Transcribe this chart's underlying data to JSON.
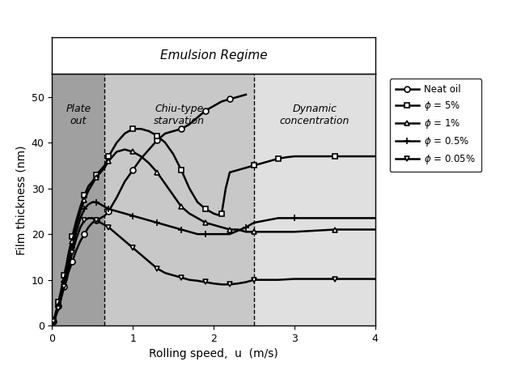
{
  "title": "Emulsion Regime",
  "xlabel": "Rolling speed,  u  (m/s)",
  "ylabel": "Film thickness (nm)",
  "xlim": [
    0,
    4
  ],
  "ylim": [
    0,
    55
  ],
  "region1_x": 0.65,
  "region2_x": 2.5,
  "region1_label": "Plate\nout",
  "region2_label": "Chiu-type\nstarvation",
  "region3_label": "Dynamic\nconcentration",
  "bg_color1": "#a0a0a0",
  "bg_color2": "#c8c8c8",
  "bg_color3": "#e0e0e0",
  "neat_oil": {
    "x": [
      0.02,
      0.04,
      0.06,
      0.08,
      0.1,
      0.12,
      0.15,
      0.18,
      0.2,
      0.25,
      0.3,
      0.35,
      0.4,
      0.45,
      0.5,
      0.55,
      0.6,
      0.65,
      0.7,
      0.8,
      0.9,
      1.0,
      1.1,
      1.2,
      1.3,
      1.4,
      1.5,
      1.6,
      1.7,
      1.8,
      1.9,
      2.0,
      2.1,
      2.2,
      2.3,
      2.4
    ],
    "y": [
      1.0,
      2.0,
      3.2,
      4.3,
      5.5,
      7.0,
      8.5,
      10.0,
      11.5,
      14.0,
      16.5,
      18.5,
      20.0,
      21.5,
      22.5,
      23.0,
      23.5,
      24.0,
      25.0,
      28.0,
      31.5,
      34.0,
      36.5,
      38.5,
      40.5,
      42.0,
      42.5,
      43.0,
      44.0,
      45.5,
      47.0,
      48.0,
      49.0,
      49.5,
      50.0,
      50.5
    ],
    "marker": "o",
    "label": "Neat oil",
    "lw": 1.8,
    "markevery": 3
  },
  "phi5": {
    "x": [
      0.02,
      0.04,
      0.06,
      0.08,
      0.1,
      0.12,
      0.15,
      0.18,
      0.2,
      0.25,
      0.3,
      0.35,
      0.4,
      0.45,
      0.5,
      0.55,
      0.6,
      0.65,
      0.7,
      0.8,
      0.9,
      1.0,
      1.1,
      1.2,
      1.3,
      1.4,
      1.5,
      1.6,
      1.7,
      1.8,
      1.9,
      2.0,
      2.05,
      2.1,
      2.15,
      2.2,
      2.5,
      2.6,
      2.7,
      2.8,
      2.9,
      3.0,
      3.5,
      4.0
    ],
    "y": [
      1.2,
      2.5,
      3.8,
      5.2,
      6.8,
      8.5,
      11.0,
      13.5,
      15.5,
      19.5,
      23.0,
      26.0,
      28.5,
      30.5,
      31.5,
      33.0,
      34.0,
      35.0,
      37.0,
      40.0,
      42.0,
      43.0,
      43.0,
      42.5,
      41.5,
      40.0,
      37.5,
      34.0,
      30.0,
      27.0,
      25.5,
      24.5,
      24.2,
      24.5,
      30.0,
      33.5,
      35.0,
      35.5,
      36.0,
      36.5,
      36.8,
      37.0,
      37.0,
      37.0
    ],
    "marker": "s",
    "label": "$\\phi$ = 5%",
    "lw": 1.8,
    "markevery": 3
  },
  "phi1": {
    "x": [
      0.02,
      0.04,
      0.06,
      0.08,
      0.1,
      0.12,
      0.15,
      0.18,
      0.2,
      0.25,
      0.3,
      0.35,
      0.4,
      0.45,
      0.5,
      0.55,
      0.6,
      0.65,
      0.7,
      0.8,
      0.9,
      1.0,
      1.1,
      1.2,
      1.3,
      1.4,
      1.5,
      1.6,
      1.7,
      1.8,
      1.9,
      2.0,
      2.1,
      2.2,
      2.3,
      2.4,
      2.5,
      2.8,
      3.0,
      3.5,
      4.0
    ],
    "y": [
      1.0,
      2.0,
      3.2,
      4.5,
      6.0,
      7.5,
      10.0,
      12.5,
      14.5,
      18.5,
      22.0,
      25.0,
      27.5,
      29.5,
      31.0,
      32.5,
      33.5,
      34.5,
      36.0,
      38.0,
      38.5,
      38.0,
      37.0,
      35.5,
      33.5,
      31.0,
      28.5,
      26.0,
      24.5,
      23.5,
      22.5,
      22.0,
      21.5,
      21.0,
      21.0,
      20.5,
      20.5,
      20.5,
      20.5,
      21.0,
      21.0
    ],
    "marker": "^",
    "label": "$\\phi$ = 1%",
    "lw": 1.8,
    "markevery": 3
  },
  "phi05": {
    "x": [
      0.02,
      0.04,
      0.06,
      0.08,
      0.1,
      0.12,
      0.15,
      0.18,
      0.2,
      0.25,
      0.3,
      0.35,
      0.4,
      0.45,
      0.5,
      0.55,
      0.6,
      0.65,
      0.7,
      0.8,
      0.9,
      1.0,
      1.1,
      1.2,
      1.3,
      1.4,
      1.5,
      1.6,
      1.7,
      1.8,
      1.9,
      2.0,
      2.2,
      2.4,
      2.5,
      2.8,
      3.0,
      3.5,
      4.0
    ],
    "y": [
      1.0,
      2.0,
      3.0,
      4.2,
      5.5,
      7.0,
      9.5,
      11.5,
      13.5,
      17.0,
      20.5,
      23.5,
      25.5,
      26.5,
      27.0,
      27.0,
      26.5,
      26.0,
      25.5,
      25.0,
      24.5,
      24.0,
      23.5,
      23.0,
      22.5,
      22.0,
      21.5,
      21.0,
      20.5,
      20.0,
      20.0,
      20.0,
      20.0,
      21.5,
      22.5,
      23.5,
      23.5,
      23.5,
      23.5
    ],
    "marker": "+",
    "label": "$\\phi$ = 0.5%",
    "lw": 1.8,
    "markevery": 3
  },
  "phi005": {
    "x": [
      0.02,
      0.04,
      0.06,
      0.08,
      0.1,
      0.12,
      0.15,
      0.18,
      0.2,
      0.25,
      0.3,
      0.35,
      0.4,
      0.45,
      0.5,
      0.55,
      0.6,
      0.65,
      0.7,
      0.8,
      0.9,
      1.0,
      1.1,
      1.2,
      1.3,
      1.4,
      1.5,
      1.6,
      1.7,
      1.8,
      1.9,
      2.0,
      2.1,
      2.2,
      2.3,
      2.4,
      2.5,
      2.8,
      3.0,
      3.5,
      4.0
    ],
    "y": [
      1.0,
      1.8,
      2.8,
      3.8,
      5.0,
      6.5,
      8.5,
      10.5,
      12.5,
      16.0,
      19.0,
      21.5,
      23.0,
      23.5,
      23.5,
      23.0,
      22.5,
      22.0,
      21.5,
      20.0,
      18.5,
      17.0,
      15.5,
      14.0,
      12.5,
      11.5,
      11.0,
      10.5,
      10.0,
      9.8,
      9.5,
      9.2,
      9.0,
      9.0,
      9.2,
      9.5,
      10.0,
      10.0,
      10.2,
      10.2,
      10.2
    ],
    "marker": "v",
    "label": "$\\phi$ = 0.05%",
    "lw": 1.8,
    "markevery": 3
  }
}
